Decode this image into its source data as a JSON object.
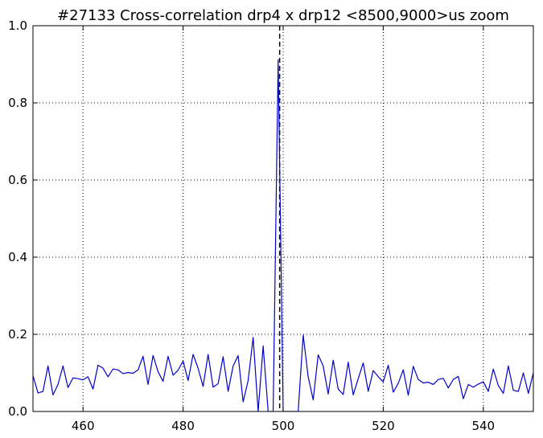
{
  "chart_data": {
    "type": "line",
    "title": "#27133 Cross-correlation drp4 x drp12 <8500,9000>us zoom",
    "xlabel": "",
    "ylabel": "",
    "xlim": [
      450,
      550
    ],
    "ylim": [
      0.0,
      1.0
    ],
    "xticks": [
      460,
      480,
      500,
      520,
      540
    ],
    "yticks": [
      0.0,
      0.2,
      0.4,
      0.6,
      0.8,
      1.0
    ],
    "ytick_labels": [
      "0.0",
      "0.2",
      "0.4",
      "0.6",
      "0.8",
      "1.0"
    ],
    "grid": true,
    "series_color": "#0000cc",
    "marker_line": {
      "x": 499.3,
      "style": "dashed",
      "color": "#000000"
    },
    "series": [
      {
        "x": [
          450,
          451,
          452,
          453,
          454,
          455,
          456,
          457,
          458,
          459,
          460,
          461,
          462,
          463,
          464,
          465,
          466,
          467,
          468,
          469,
          470,
          471,
          472,
          473,
          474,
          475,
          476,
          477,
          478,
          479,
          480,
          481,
          482,
          483,
          484,
          485,
          486,
          487,
          488,
          489,
          490,
          491,
          492,
          493,
          494,
          495,
          496,
          497,
          498,
          499,
          500,
          501,
          502,
          503,
          504,
          505,
          506,
          507,
          508,
          509,
          510,
          511,
          512,
          513,
          514,
          515,
          516,
          517,
          518,
          519,
          520,
          521,
          522,
          523,
          524,
          525,
          526,
          527,
          528,
          529,
          530,
          531,
          532,
          533,
          534,
          535,
          536,
          537,
          538,
          539,
          540,
          541,
          542,
          543,
          544,
          545,
          546,
          547,
          548,
          549,
          550
        ],
        "values": [
          0.093,
          0.048,
          0.052,
          0.118,
          0.043,
          0.07,
          0.118,
          0.062,
          0.087,
          0.085,
          0.082,
          0.09,
          0.058,
          0.12,
          0.112,
          0.09,
          0.11,
          0.108,
          0.098,
          0.101,
          0.099,
          0.108,
          0.143,
          0.07,
          0.145,
          0.103,
          0.078,
          0.143,
          0.094,
          0.107,
          0.131,
          0.08,
          0.148,
          0.112,
          0.065,
          0.148,
          0.063,
          0.072,
          0.142,
          0.052,
          0.118,
          0.145,
          0.025,
          0.08,
          0.192,
          0.0,
          0.17,
          0.0,
          0.0,
          0.912,
          0.0,
          0.0,
          0.0,
          0.0,
          0.198,
          0.09,
          0.03,
          0.147,
          0.118,
          0.045,
          0.133,
          0.058,
          0.044,
          0.128,
          0.043,
          0.085,
          0.126,
          0.052,
          0.106,
          0.09,
          0.077,
          0.12,
          0.05,
          0.073,
          0.108,
          0.042,
          0.117,
          0.083,
          0.074,
          0.076,
          0.07,
          0.083,
          0.086,
          0.061,
          0.083,
          0.091,
          0.033,
          0.07,
          0.063,
          0.071,
          0.077,
          0.052,
          0.11,
          0.067,
          0.047,
          0.118,
          0.055,
          0.052,
          0.1,
          0.047,
          0.1
        ]
      }
    ]
  }
}
